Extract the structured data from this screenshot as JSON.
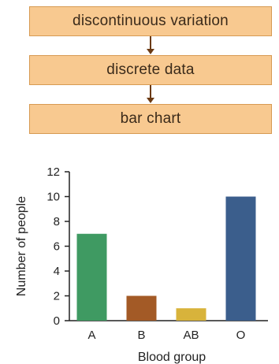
{
  "flow": {
    "step1": "discontinuous variation",
    "step2": "discrete data",
    "step3": "bar chart"
  },
  "chart_data": {
    "type": "bar",
    "categories": [
      "A",
      "B",
      "AB",
      "O"
    ],
    "values": [
      7,
      2,
      1,
      10
    ],
    "colors": [
      "#3f9a62",
      "#a35a26",
      "#d8b33b",
      "#3b5e8c"
    ],
    "xlabel": "Blood group",
    "ylabel": "Number of people",
    "ylim": [
      0,
      12
    ],
    "yticks": [
      0,
      2,
      4,
      6,
      8,
      10,
      12
    ],
    "grid": false,
    "legend": "none"
  }
}
